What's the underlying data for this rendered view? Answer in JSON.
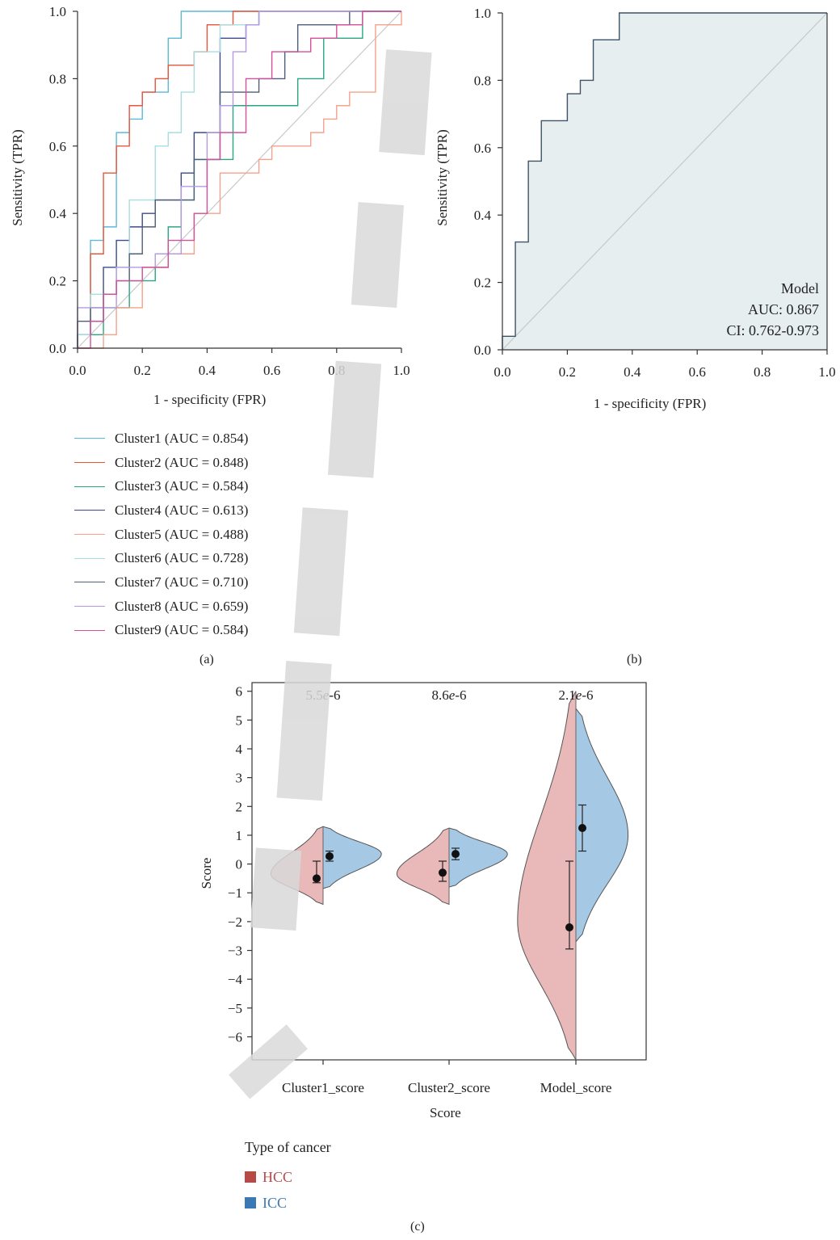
{
  "chart_data": [
    {
      "panel": "(a)",
      "type": "line",
      "xlabel": "1 - specificity (FPR)",
      "ylabel": "Sensitivity (TPR)",
      "xlim": [
        0,
        1
      ],
      "ylim": [
        0,
        1
      ],
      "xticks": [
        "0.0",
        "0.2",
        "0.4",
        "0.6",
        "0.8",
        "1.0"
      ],
      "yticks": [
        "0.0",
        "0.2",
        "0.4",
        "0.6",
        "0.8",
        "1.0"
      ],
      "legend_position": "below",
      "series": [
        {
          "name": "Cluster1 (AUC = 0.854)",
          "color": "#5bbad8",
          "points": [
            [
              0,
              0
            ],
            [
              0,
              0.04
            ],
            [
              0.04,
              0.04
            ],
            [
              0.04,
              0.32
            ],
            [
              0.08,
              0.32
            ],
            [
              0.08,
              0.36
            ],
            [
              0.12,
              0.36
            ],
            [
              0.12,
              0.64
            ],
            [
              0.16,
              0.64
            ],
            [
              0.16,
              0.68
            ],
            [
              0.2,
              0.68
            ],
            [
              0.2,
              0.76
            ],
            [
              0.28,
              0.76
            ],
            [
              0.28,
              0.92
            ],
            [
              0.32,
              0.92
            ],
            [
              0.32,
              1.0
            ],
            [
              1,
              1
            ]
          ]
        },
        {
          "name": "Cluster2 (AUC = 0.848)",
          "color": "#e8553a",
          "points": [
            [
              0,
              0
            ],
            [
              0,
              0.04
            ],
            [
              0.04,
              0.04
            ],
            [
              0.04,
              0.28
            ],
            [
              0.08,
              0.28
            ],
            [
              0.08,
              0.52
            ],
            [
              0.12,
              0.52
            ],
            [
              0.12,
              0.6
            ],
            [
              0.16,
              0.6
            ],
            [
              0.16,
              0.72
            ],
            [
              0.2,
              0.72
            ],
            [
              0.2,
              0.76
            ],
            [
              0.24,
              0.76
            ],
            [
              0.24,
              0.8
            ],
            [
              0.28,
              0.8
            ],
            [
              0.28,
              0.84
            ],
            [
              0.36,
              0.84
            ],
            [
              0.36,
              0.88
            ],
            [
              0.4,
              0.88
            ],
            [
              0.4,
              0.96
            ],
            [
              0.48,
              0.96
            ],
            [
              0.48,
              1.0
            ],
            [
              1,
              1
            ]
          ]
        },
        {
          "name": "Cluster3 (AUC = 0.584)",
          "color": "#2aa684",
          "points": [
            [
              0,
              0
            ],
            [
              0,
              0.04
            ],
            [
              0.08,
              0.04
            ],
            [
              0.08,
              0.12
            ],
            [
              0.16,
              0.12
            ],
            [
              0.16,
              0.2
            ],
            [
              0.24,
              0.2
            ],
            [
              0.24,
              0.24
            ],
            [
              0.28,
              0.24
            ],
            [
              0.28,
              0.36
            ],
            [
              0.32,
              0.36
            ],
            [
              0.32,
              0.44
            ],
            [
              0.36,
              0.44
            ],
            [
              0.36,
              0.56
            ],
            [
              0.48,
              0.56
            ],
            [
              0.48,
              0.72
            ],
            [
              0.68,
              0.72
            ],
            [
              0.68,
              0.8
            ],
            [
              0.76,
              0.8
            ],
            [
              0.76,
              0.92
            ],
            [
              0.88,
              0.92
            ],
            [
              0.88,
              1.0
            ],
            [
              1,
              1
            ]
          ]
        },
        {
          "name": "Cluster4 (AUC = 0.613)",
          "color": "#3d4a8a",
          "points": [
            [
              0,
              0
            ],
            [
              0,
              0.04
            ],
            [
              0.04,
              0.04
            ],
            [
              0.04,
              0.08
            ],
            [
              0.08,
              0.08
            ],
            [
              0.08,
              0.24
            ],
            [
              0.12,
              0.24
            ],
            [
              0.12,
              0.32
            ],
            [
              0.16,
              0.32
            ],
            [
              0.16,
              0.36
            ],
            [
              0.2,
              0.36
            ],
            [
              0.2,
              0.4
            ],
            [
              0.24,
              0.4
            ],
            [
              0.24,
              0.44
            ],
            [
              0.32,
              0.44
            ],
            [
              0.32,
              0.52
            ],
            [
              0.36,
              0.52
            ],
            [
              0.36,
              0.64
            ],
            [
              0.44,
              0.64
            ],
            [
              0.44,
              0.92
            ],
            [
              0.52,
              0.92
            ],
            [
              0.52,
              0.96
            ],
            [
              0.56,
              0.96
            ],
            [
              0.56,
              1.0
            ],
            [
              1,
              1
            ]
          ]
        },
        {
          "name": "Cluster5 (AUC = 0.488)",
          "color": "#f4a28c",
          "points": [
            [
              0,
              0
            ],
            [
              0.08,
              0
            ],
            [
              0.08,
              0.04
            ],
            [
              0.12,
              0.04
            ],
            [
              0.12,
              0.12
            ],
            [
              0.2,
              0.12
            ],
            [
              0.2,
              0.24
            ],
            [
              0.28,
              0.24
            ],
            [
              0.28,
              0.28
            ],
            [
              0.36,
              0.28
            ],
            [
              0.36,
              0.4
            ],
            [
              0.44,
              0.4
            ],
            [
              0.44,
              0.52
            ],
            [
              0.56,
              0.52
            ],
            [
              0.56,
              0.56
            ],
            [
              0.6,
              0.56
            ],
            [
              0.6,
              0.6
            ],
            [
              0.72,
              0.6
            ],
            [
              0.72,
              0.64
            ],
            [
              0.76,
              0.64
            ],
            [
              0.76,
              0.68
            ],
            [
              0.8,
              0.68
            ],
            [
              0.8,
              0.72
            ],
            [
              0.84,
              0.72
            ],
            [
              0.84,
              0.76
            ],
            [
              0.92,
              0.76
            ],
            [
              0.92,
              0.96
            ],
            [
              1,
              0.96
            ],
            [
              1,
              1
            ]
          ]
        },
        {
          "name": "Cluster6 (AUC = 0.728)",
          "color": "#a8dde0",
          "points": [
            [
              0,
              0
            ],
            [
              0,
              0.04
            ],
            [
              0.04,
              0.04
            ],
            [
              0.04,
              0.16
            ],
            [
              0.12,
              0.16
            ],
            [
              0.12,
              0.24
            ],
            [
              0.16,
              0.24
            ],
            [
              0.16,
              0.44
            ],
            [
              0.24,
              0.44
            ],
            [
              0.24,
              0.6
            ],
            [
              0.28,
              0.6
            ],
            [
              0.28,
              0.64
            ],
            [
              0.32,
              0.64
            ],
            [
              0.32,
              0.76
            ],
            [
              0.36,
              0.76
            ],
            [
              0.36,
              0.88
            ],
            [
              0.44,
              0.88
            ],
            [
              0.44,
              0.96
            ],
            [
              0.56,
              0.96
            ],
            [
              0.56,
              1.0
            ],
            [
              1,
              1
            ]
          ]
        },
        {
          "name": "Cluster7 (AUC = 0.710)",
          "color": "#4e5f7a",
          "points": [
            [
              0,
              0
            ],
            [
              0,
              0.08
            ],
            [
              0.04,
              0.08
            ],
            [
              0.04,
              0.12
            ],
            [
              0.08,
              0.12
            ],
            [
              0.08,
              0.16
            ],
            [
              0.12,
              0.16
            ],
            [
              0.12,
              0.2
            ],
            [
              0.16,
              0.2
            ],
            [
              0.16,
              0.28
            ],
            [
              0.2,
              0.28
            ],
            [
              0.2,
              0.36
            ],
            [
              0.24,
              0.36
            ],
            [
              0.24,
              0.44
            ],
            [
              0.36,
              0.44
            ],
            [
              0.36,
              0.56
            ],
            [
              0.44,
              0.56
            ],
            [
              0.44,
              0.76
            ],
            [
              0.56,
              0.76
            ],
            [
              0.56,
              0.8
            ],
            [
              0.64,
              0.8
            ],
            [
              0.64,
              0.88
            ],
            [
              0.68,
              0.88
            ],
            [
              0.68,
              0.96
            ],
            [
              0.84,
              0.96
            ],
            [
              0.84,
              1.0
            ],
            [
              1,
              1
            ]
          ]
        },
        {
          "name": "Cluster8 (AUC = 0.659)",
          "color": "#b49ae0",
          "points": [
            [
              0,
              0
            ],
            [
              0,
              0.12
            ],
            [
              0.12,
              0.12
            ],
            [
              0.12,
              0.24
            ],
            [
              0.24,
              0.24
            ],
            [
              0.24,
              0.28
            ],
            [
              0.32,
              0.28
            ],
            [
              0.32,
              0.48
            ],
            [
              0.4,
              0.48
            ],
            [
              0.4,
              0.64
            ],
            [
              0.44,
              0.64
            ],
            [
              0.44,
              0.72
            ],
            [
              0.48,
              0.72
            ],
            [
              0.48,
              0.88
            ],
            [
              0.52,
              0.88
            ],
            [
              0.52,
              0.96
            ],
            [
              0.56,
              0.96
            ],
            [
              0.56,
              1.0
            ],
            [
              1,
              1
            ]
          ]
        },
        {
          "name": "Cluster9 (AUC = 0.584)",
          "color": "#d4509a",
          "points": [
            [
              0,
              0
            ],
            [
              0.04,
              0
            ],
            [
              0.04,
              0.08
            ],
            [
              0.08,
              0.08
            ],
            [
              0.08,
              0.16
            ],
            [
              0.12,
              0.16
            ],
            [
              0.12,
              0.2
            ],
            [
              0.2,
              0.2
            ],
            [
              0.2,
              0.24
            ],
            [
              0.28,
              0.24
            ],
            [
              0.28,
              0.32
            ],
            [
              0.36,
              0.32
            ],
            [
              0.36,
              0.4
            ],
            [
              0.4,
              0.4
            ],
            [
              0.4,
              0.56
            ],
            [
              0.44,
              0.56
            ],
            [
              0.44,
              0.64
            ],
            [
              0.52,
              0.64
            ],
            [
              0.52,
              0.8
            ],
            [
              0.6,
              0.8
            ],
            [
              0.6,
              0.88
            ],
            [
              0.72,
              0.88
            ],
            [
              0.72,
              0.92
            ],
            [
              0.8,
              0.92
            ],
            [
              0.8,
              0.96
            ],
            [
              0.88,
              0.96
            ],
            [
              0.88,
              1.0
            ],
            [
              1,
              1
            ]
          ]
        }
      ]
    },
    {
      "panel": "(b)",
      "type": "line",
      "xlabel": "1 - specificity (FPR)",
      "ylabel": "Sensitivity (TPR)",
      "xlim": [
        0,
        1
      ],
      "ylim": [
        0,
        1
      ],
      "xticks": [
        "0.0",
        "0.2",
        "0.4",
        "0.6",
        "0.8",
        "1.0"
      ],
      "yticks": [
        "0.0",
        "0.2",
        "0.4",
        "0.6",
        "0.8",
        "1.0"
      ],
      "fill_color": "#e6eef0",
      "line_color": "#3e5466",
      "annotation": [
        "Model",
        "AUC: 0.867",
        "CI: 0.762-0.973"
      ],
      "series": [
        {
          "points": [
            [
              0,
              0
            ],
            [
              0,
              0.04
            ],
            [
              0.04,
              0.04
            ],
            [
              0.04,
              0.32
            ],
            [
              0.08,
              0.32
            ],
            [
              0.08,
              0.56
            ],
            [
              0.12,
              0.56
            ],
            [
              0.12,
              0.68
            ],
            [
              0.2,
              0.68
            ],
            [
              0.2,
              0.76
            ],
            [
              0.24,
              0.76
            ],
            [
              0.24,
              0.8
            ],
            [
              0.28,
              0.8
            ],
            [
              0.28,
              0.92
            ],
            [
              0.36,
              0.92
            ],
            [
              0.36,
              1.0
            ],
            [
              1,
              1
            ]
          ]
        }
      ]
    },
    {
      "panel": "(c)",
      "type": "violin",
      "xlabel": "Score",
      "ylabel": "Score",
      "ylim": [
        -6.8,
        6.3
      ],
      "yticks": [
        -6,
        -5,
        -4,
        -3,
        -2,
        -1,
        0,
        1,
        2,
        3,
        4,
        5,
        6
      ],
      "categories": [
        "Cluster1_score",
        "Cluster2_score",
        "Model_score"
      ],
      "pvalues": [
        "5.5e-6",
        "8.6e-6",
        "2.1e-6"
      ],
      "legend_title": "Type of cancer",
      "groups": [
        {
          "name": "HCC",
          "color": "#b84a46",
          "fill": "#e9b8b8"
        },
        {
          "name": "ICC",
          "color": "#3b79b5",
          "fill": "#a5c9e5"
        }
      ],
      "violins": [
        {
          "hcc": {
            "ymin": -1.4,
            "ymax": 1.3,
            "peak": -0.35,
            "halfwidth": 0.85,
            "mean": -0.5,
            "lo": -0.65,
            "hi": 0.1
          },
          "icc": {
            "ymin": -0.85,
            "ymax": 1.3,
            "peak": 0.35,
            "halfwidth": 0.95,
            "mean": 0.27,
            "lo": 0.1,
            "hi": 0.45
          }
        },
        {
          "hcc": {
            "ymin": -1.4,
            "ymax": 1.25,
            "peak": -0.35,
            "halfwidth": 0.85,
            "mean": -0.3,
            "lo": -0.6,
            "hi": 0.1
          },
          "icc": {
            "ymin": -0.8,
            "ymax": 1.25,
            "peak": 0.35,
            "halfwidth": 0.95,
            "mean": 0.35,
            "lo": 0.15,
            "hi": 0.55
          }
        },
        {
          "hcc": {
            "ymin": -6.8,
            "ymax": 6.0,
            "peak": -2.0,
            "halfwidth": 0.95,
            "mean": -2.2,
            "lo": -2.95,
            "hi": 0.1
          },
          "icc": {
            "ymin": -2.7,
            "ymax": 5.4,
            "peak": 1.0,
            "halfwidth": 0.85,
            "mean": 1.25,
            "lo": 0.45,
            "hi": 2.05
          }
        }
      ]
    }
  ],
  "panel_labels": {
    "a": "(a)",
    "b": "(b)",
    "c": "(c)"
  }
}
